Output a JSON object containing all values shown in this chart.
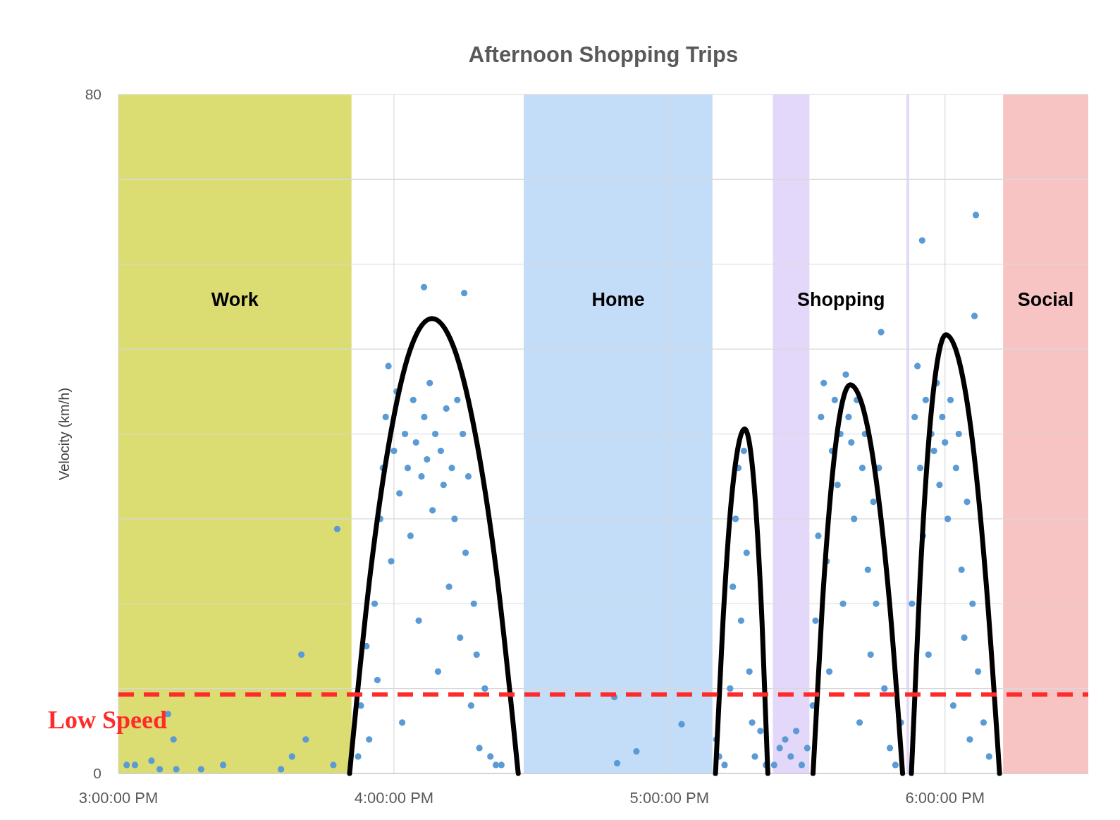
{
  "chart_data": {
    "type": "scatter",
    "title": "Afternoon Shopping Trips",
    "ylabel": "Velocity (km/h)",
    "xlim": [
      15,
      18.52
    ],
    "ylim": [
      0,
      80
    ],
    "xticks": [
      {
        "value": 15,
        "label": "3:00:00 PM"
      },
      {
        "value": 16,
        "label": "4:00:00 PM"
      },
      {
        "value": 17,
        "label": "5:00:00 PM"
      },
      {
        "value": 18,
        "label": "6:00:00 PM"
      }
    ],
    "yticks": [
      0,
      {
        "value": 10,
        "label": null
      },
      {
        "value": 20,
        "label": null
      },
      {
        "value": 30,
        "label": null
      },
      {
        "value": 40,
        "label": null
      },
      {
        "value": 50,
        "label": null
      },
      {
        "value": 60,
        "label": null
      },
      {
        "value": 70,
        "label": null
      },
      80
    ],
    "grid": true,
    "marker": "circle",
    "bands": [
      {
        "axis": "x",
        "from": 15,
        "to": 15.846,
        "label": "Work",
        "color": "#dbdd72"
      },
      {
        "axis": "x",
        "from": 16.471,
        "to": 17.156,
        "label": "Home",
        "color": "#c3ddf8"
      },
      {
        "axis": "x",
        "from": 17.375,
        "to": 17.508,
        "label": null,
        "color": "#e4d8fa"
      },
      {
        "axis": "x",
        "from": 17.86,
        "to": 17.87,
        "label": null,
        "color": "#e4d8fa"
      },
      {
        "axis": "x",
        "from": 18.211,
        "to": 18.52,
        "label": "Social",
        "color": "#f7c3c3"
      }
    ],
    "annotations": [
      "Shopping"
    ],
    "ref_lines": [
      {
        "axis": "y",
        "value": 9.3,
        "label": "Low Speed",
        "color": "#ff2a2a",
        "line_style": "dashed"
      }
    ],
    "series": [
      {
        "color": "#5b9bd5",
        "x": [
          15.03,
          15.06,
          15.12,
          15.15,
          15.18,
          15.2,
          15.21,
          15.3,
          15.38,
          15.59,
          15.63,
          15.664,
          15.68,
          15.78,
          15.794,
          15.87,
          15.88,
          15.9,
          15.91,
          15.93,
          15.94,
          15.95,
          15.96,
          15.97,
          15.98,
          15.99,
          16.0,
          16.01,
          16.02,
          16.03,
          16.04,
          16.05,
          16.06,
          16.07,
          16.08,
          16.09,
          16.1,
          16.109,
          16.11,
          16.12,
          16.13,
          16.14,
          16.15,
          16.16,
          16.17,
          16.18,
          16.19,
          16.2,
          16.21,
          16.22,
          16.23,
          16.24,
          16.25,
          16.255,
          16.26,
          16.27,
          16.28,
          16.29,
          16.3,
          16.31,
          16.33,
          16.35,
          16.37,
          16.39,
          16.8,
          16.81,
          16.88,
          17.044,
          17.17,
          17.18,
          17.2,
          17.22,
          17.23,
          17.24,
          17.25,
          17.26,
          17.27,
          17.28,
          17.29,
          17.3,
          17.31,
          17.33,
          17.35,
          17.38,
          17.4,
          17.42,
          17.44,
          17.46,
          17.48,
          17.5,
          17.52,
          17.53,
          17.54,
          17.55,
          17.56,
          17.57,
          17.58,
          17.59,
          17.6,
          17.61,
          17.62,
          17.63,
          17.64,
          17.65,
          17.66,
          17.67,
          17.68,
          17.69,
          17.7,
          17.71,
          17.72,
          17.73,
          17.74,
          17.75,
          17.76,
          17.768,
          17.78,
          17.8,
          17.82,
          17.84,
          17.88,
          17.89,
          17.9,
          17.91,
          17.917,
          17.92,
          17.93,
          17.94,
          17.95,
          17.96,
          17.97,
          17.98,
          17.99,
          18.0,
          18.01,
          18.02,
          18.03,
          18.04,
          18.05,
          18.06,
          18.07,
          18.08,
          18.09,
          18.1,
          18.107,
          18.112,
          18.12,
          18.14,
          18.16
        ],
        "values": [
          1,
          1,
          1.5,
          0.5,
          7,
          4,
          0.5,
          0.5,
          1,
          0.5,
          2,
          14,
          4,
          1,
          28.8,
          2,
          8,
          15,
          4,
          20,
          11,
          30,
          36,
          42,
          48,
          25,
          38,
          45,
          33,
          6,
          40,
          36,
          28,
          44,
          39,
          18,
          35,
          57.3,
          42,
          37,
          46,
          31,
          40,
          12,
          38,
          34,
          43,
          22,
          36,
          30,
          44,
          16,
          40,
          56.6,
          26,
          35,
          8,
          20,
          14,
          3,
          10,
          2,
          1,
          1,
          9,
          1.2,
          2.6,
          5.8,
          4,
          2,
          1,
          10,
          22,
          30,
          36,
          18,
          38,
          26,
          12,
          6,
          2,
          5,
          1,
          1,
          3,
          4,
          2,
          5,
          1,
          3,
          8,
          18,
          28,
          42,
          46,
          25,
          12,
          38,
          44,
          34,
          40,
          20,
          47,
          42,
          39,
          30,
          44,
          6,
          36,
          40,
          24,
          14,
          32,
          20,
          36,
          52,
          10,
          3,
          1,
          6,
          20,
          42,
          48,
          36,
          62.8,
          28,
          44,
          14,
          40,
          38,
          46,
          34,
          42,
          39,
          30,
          44,
          8,
          36,
          40,
          24,
          16,
          32,
          4,
          20,
          53.9,
          65.8,
          12,
          6,
          2
        ]
      },
      {
        "type": "line",
        "marker": "none",
        "color": "#000000",
        "x": [
          15.839,
          15.914,
          15.989,
          16.063,
          16.138,
          16.216,
          16.294,
          16.373,
          16.451
        ],
        "values": [
          0,
          23.5,
          40.2,
          50.3,
          53.6,
          50.3,
          40.2,
          23.5,
          0
        ]
      },
      {
        "type": "line",
        "marker": "none",
        "color": "#000000",
        "x": [
          17.167,
          17.194,
          17.22,
          17.247,
          17.273,
          17.294,
          17.315,
          17.336,
          17.357
        ],
        "values": [
          0,
          17.8,
          30.5,
          38.1,
          40.6,
          38.1,
          30.5,
          17.8,
          0
        ]
      },
      {
        "type": "line",
        "marker": "none",
        "color": "#000000",
        "x": [
          17.521,
          17.555,
          17.589,
          17.622,
          17.656,
          17.704,
          17.751,
          17.799,
          17.846
        ],
        "values": [
          0,
          20,
          34.4,
          42.9,
          45.8,
          42.9,
          34.4,
          20,
          0
        ]
      },
      {
        "type": "line",
        "marker": "none",
        "color": "#000000",
        "x": [
          17.878,
          17.909,
          17.94,
          17.972,
          18.003,
          18.052,
          18.101,
          18.149,
          18.198
        ],
        "values": [
          0,
          22.6,
          38.8,
          48.5,
          51.7,
          48.5,
          38.8,
          22.6,
          0
        ]
      }
    ]
  }
}
